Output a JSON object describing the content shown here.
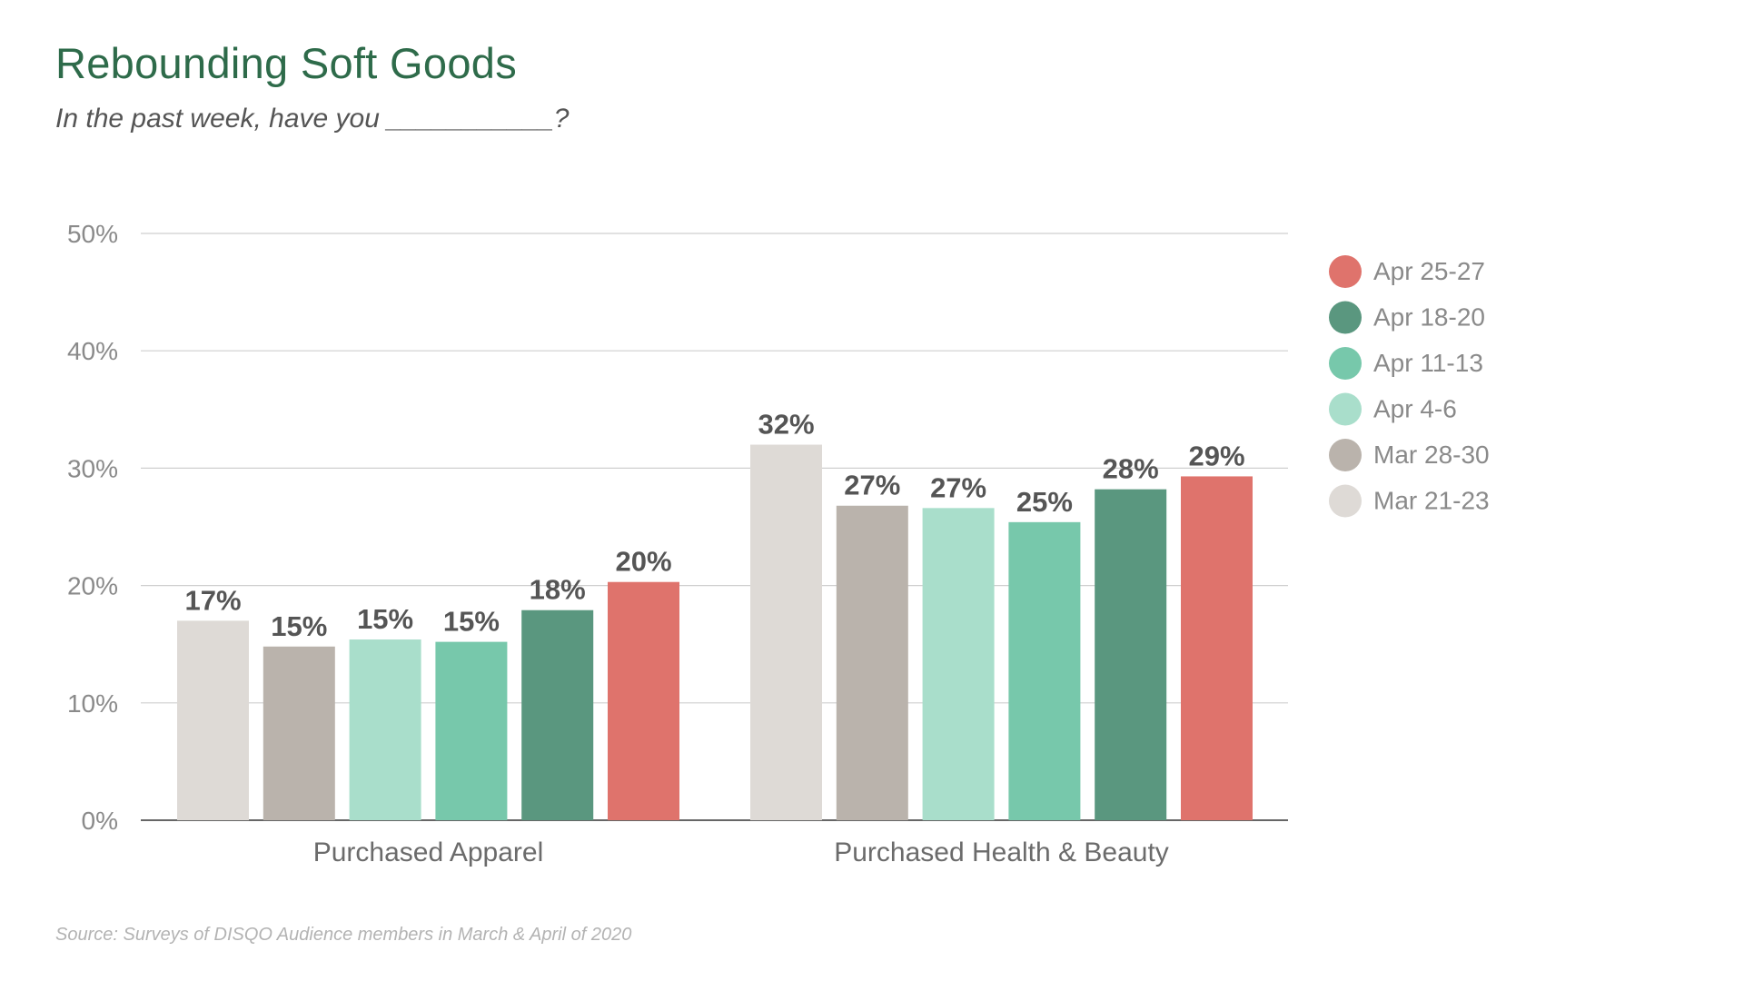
{
  "header": {
    "title": "Rebounding Soft Goods",
    "subtitle": "In the past week, have you ___________?"
  },
  "footer": {
    "source": "Source: Surveys of DISQO Audience members in March & April of 2020"
  },
  "chart_data": {
    "type": "bar",
    "title": "Rebounding Soft Goods",
    "subtitle": "In the past week, have you ___________?",
    "categories": [
      "Purchased Apparel",
      "Purchased Health & Beauty"
    ],
    "series": [
      {
        "name": "Mar 21-23",
        "color": "#dedad6",
        "values": [
          17,
          32
        ],
        "labels": [
          "17%",
          "32%"
        ]
      },
      {
        "name": "Mar 28-30",
        "color": "#bab3ac",
        "values": [
          14.8,
          26.8
        ],
        "labels": [
          "15%",
          "27%"
        ]
      },
      {
        "name": "Apr 4-6",
        "color": "#a9decb",
        "values": [
          15.4,
          26.6
        ],
        "labels": [
          "15%",
          "27%"
        ]
      },
      {
        "name": "Apr 11-13",
        "color": "#77c8ab",
        "values": [
          15.2,
          25.4
        ],
        "labels": [
          "15%",
          "25%"
        ]
      },
      {
        "name": "Apr 18-20",
        "color": "#5a977f",
        "values": [
          17.9,
          28.2
        ],
        "labels": [
          "18%",
          "28%"
        ]
      },
      {
        "name": "Apr 25-27",
        "color": "#df736c",
        "values": [
          20.3,
          29.3
        ],
        "labels": [
          "20%",
          "29%"
        ]
      }
    ],
    "y_ticks": [
      "0%",
      "10%",
      "20%",
      "30%",
      "40%",
      "50%"
    ],
    "ylim": [
      0,
      50
    ],
    "grid": true,
    "legend": {
      "placement": "right",
      "order": [
        "Apr 25-27",
        "Apr 18-20",
        "Apr 11-13",
        "Apr 4-6",
        "Mar 28-30",
        "Mar 21-23"
      ]
    }
  }
}
